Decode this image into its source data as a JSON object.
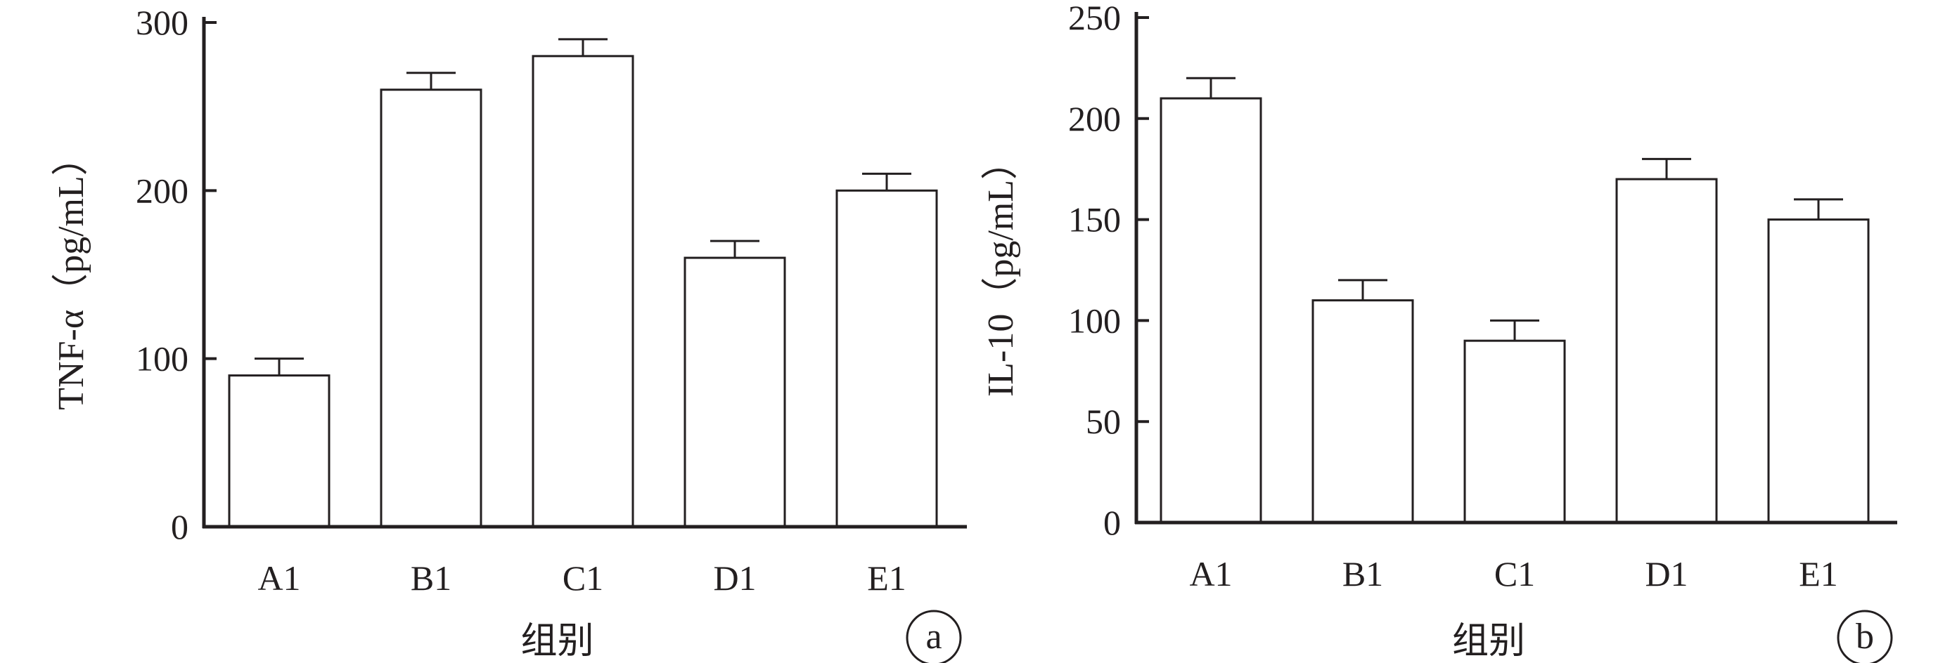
{
  "colors": {
    "ink": "#231f20",
    "bar_fill": "#ffffff"
  },
  "chart_data": [
    {
      "type": "bar",
      "panel_label": "a",
      "ylabel": "TNF-α（pg/mL）",
      "xlabel": "组别",
      "categories": [
        "A1",
        "B1",
        "C1",
        "D1",
        "E1"
      ],
      "values": [
        90,
        260,
        280,
        160,
        200
      ],
      "errors": [
        10,
        10,
        10,
        10,
        10
      ],
      "ylim": [
        0,
        300
      ],
      "yticks": [
        0,
        100,
        200,
        300
      ],
      "ytick_labels": [
        "0",
        "100",
        "200",
        "300"
      ],
      "grid": false
    },
    {
      "type": "bar",
      "panel_label": "b",
      "ylabel": "IL-10（pg/mL）",
      "xlabel": "组别",
      "categories": [
        "A1",
        "B1",
        "C1",
        "D1",
        "E1"
      ],
      "values": [
        210,
        110,
        90,
        170,
        150
      ],
      "errors": [
        10,
        10,
        10,
        10,
        10
      ],
      "ylim": [
        0,
        250
      ],
      "yticks": [
        0,
        50,
        100,
        150,
        200,
        250
      ],
      "ytick_labels": [
        "0",
        "50",
        "100",
        "150",
        "200",
        "250"
      ],
      "grid": false
    }
  ]
}
